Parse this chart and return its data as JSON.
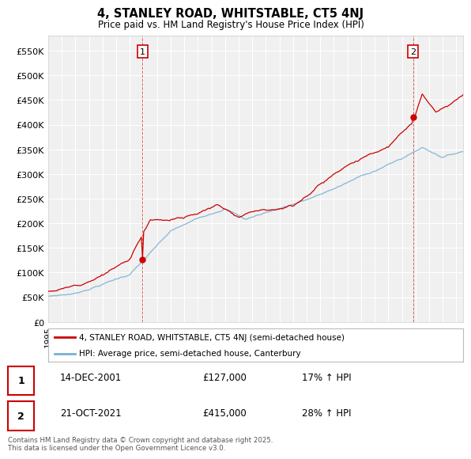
{
  "title": "4, STANLEY ROAD, WHITSTABLE, CT5 4NJ",
  "subtitle": "Price paid vs. HM Land Registry's House Price Index (HPI)",
  "ylabel_ticks": [
    "£0",
    "£50K",
    "£100K",
    "£150K",
    "£200K",
    "£250K",
    "£300K",
    "£350K",
    "£400K",
    "£450K",
    "£500K",
    "£550K"
  ],
  "ytick_values": [
    0,
    50000,
    100000,
    150000,
    200000,
    250000,
    300000,
    350000,
    400000,
    450000,
    500000,
    550000
  ],
  "ylim": [
    0,
    580000
  ],
  "year_start": 1995,
  "year_end": 2025,
  "sale1_year": 2001.95,
  "sale1_price": 127000,
  "sale1_label": "1",
  "sale2_year": 2021.8,
  "sale2_price": 415000,
  "sale2_label": "2",
  "line_color_property": "#cc0000",
  "line_color_hpi": "#7ab0d4",
  "marker_color": "#cc0000",
  "vline_color": "#cc0000",
  "legend_property": "4, STANLEY ROAD, WHITSTABLE, CT5 4NJ (semi-detached house)",
  "legend_hpi": "HPI: Average price, semi-detached house, Canterbury",
  "table_rows": [
    {
      "label": "1",
      "date": "14-DEC-2001",
      "price": "£127,000",
      "change": "17% ↑ HPI"
    },
    {
      "label": "2",
      "date": "21-OCT-2021",
      "price": "£415,000",
      "change": "28% ↑ HPI"
    }
  ],
  "footer": "Contains HM Land Registry data © Crown copyright and database right 2025.\nThis data is licensed under the Open Government Licence v3.0.",
  "background_color": "#ffffff",
  "plot_bg_color": "#f0f0f0",
  "grid_color": "#ffffff"
}
